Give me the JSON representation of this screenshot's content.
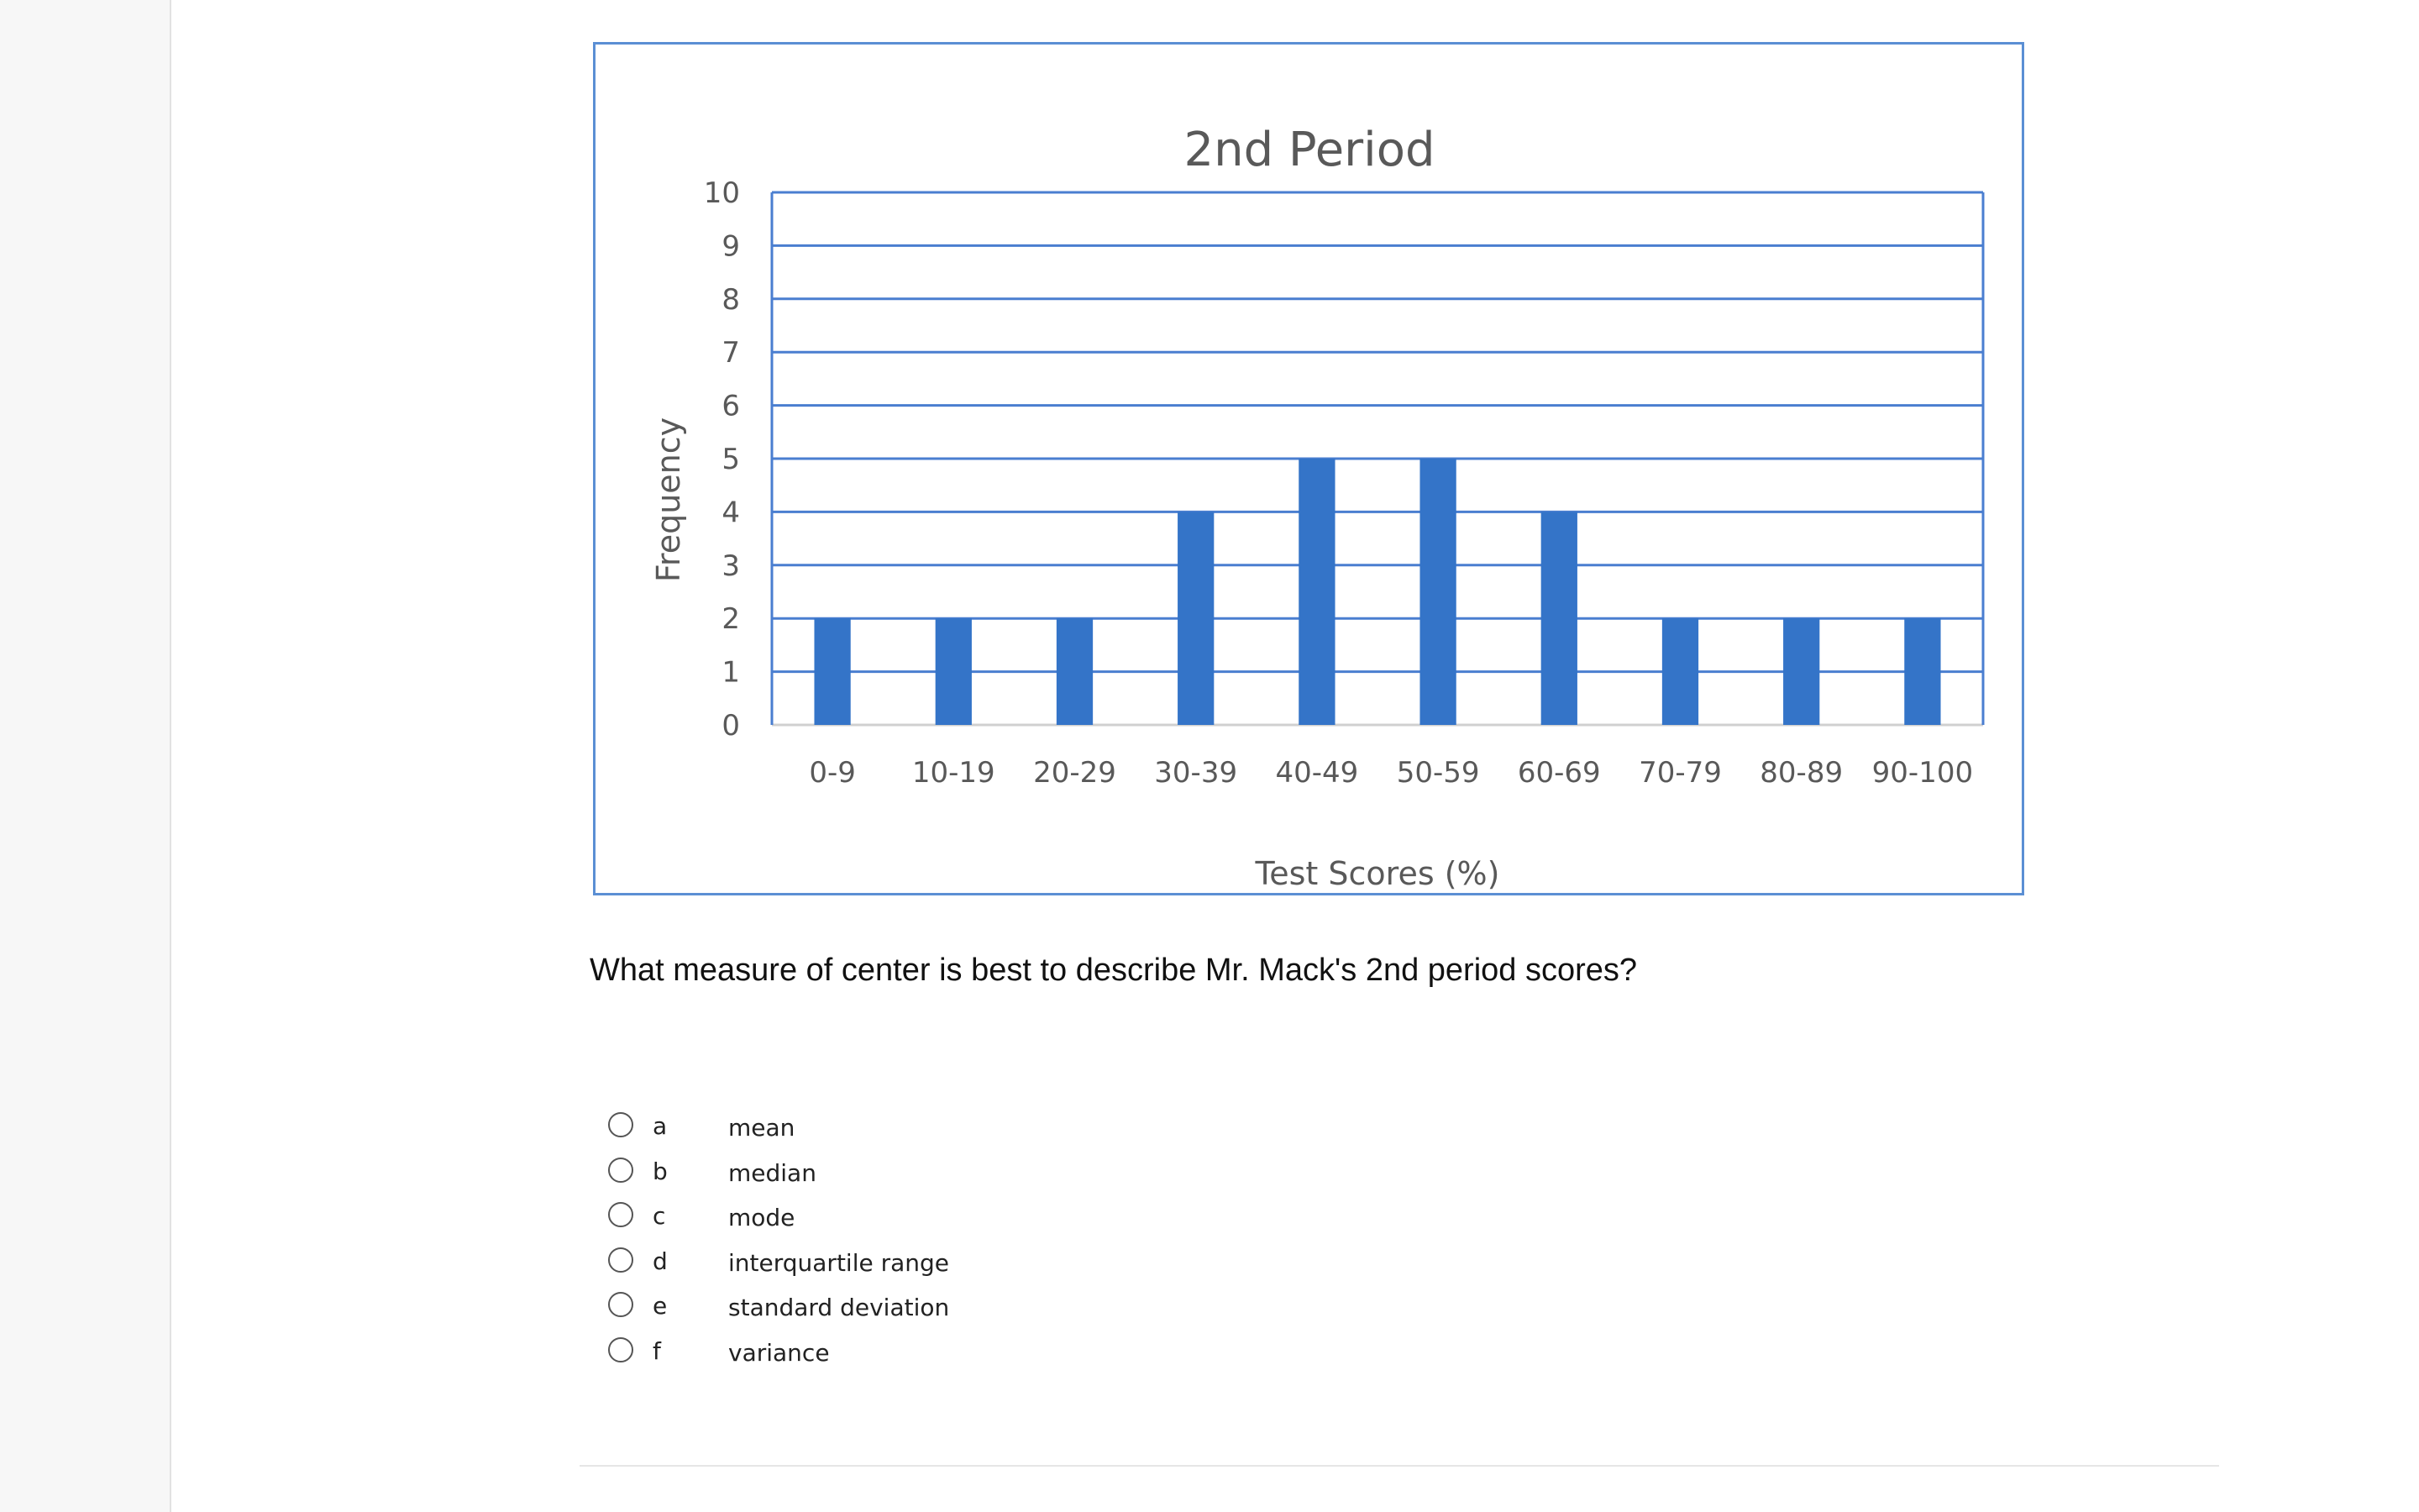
{
  "chart_data": {
    "type": "bar",
    "title": "2nd Period",
    "xlabel": "Test Scores (%)",
    "ylabel": "Frequency",
    "categories": [
      "0-9",
      "10-19",
      "20-29",
      "30-39",
      "40-49",
      "50-59",
      "60-69",
      "70-79",
      "80-89",
      "90-100"
    ],
    "values": [
      2,
      2,
      2,
      4,
      5,
      5,
      4,
      2,
      2,
      2
    ],
    "ylim": [
      0,
      10
    ],
    "yticks": [
      "0",
      "1",
      "2",
      "3",
      "4",
      "5",
      "6",
      "7",
      "8",
      "9",
      "10"
    ],
    "grid": true,
    "legend": "none",
    "colors": {
      "bar": "#3474c8",
      "grid": "#4a7ed0",
      "frame": "#5b8fd4",
      "text": "#595959"
    }
  },
  "question": {
    "text": "What measure of center is best to describe Mr. Mack's 2nd period scores?"
  },
  "options": [
    {
      "letter": "a",
      "text": "mean"
    },
    {
      "letter": "b",
      "text": "median"
    },
    {
      "letter": "c",
      "text": "mode"
    },
    {
      "letter": "d",
      "text": "interquartile range"
    },
    {
      "letter": "e",
      "text": "standard deviation"
    },
    {
      "letter": "f",
      "text": "variance"
    }
  ]
}
